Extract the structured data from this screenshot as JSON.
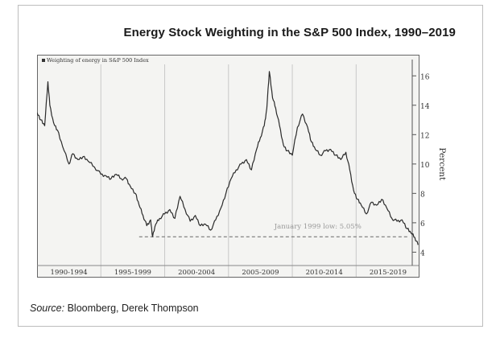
{
  "title": "Energy Stock Weighting in the S&P 500 Index, 1990–2019",
  "source_label": "Source:",
  "source_text": "Bloomberg, Derek Thompson",
  "chart_data": {
    "type": "line",
    "legend": "Weighting of energy in S&P 500 Index",
    "legend_position": "top-left",
    "ylabel": "Percent",
    "ylim": [
      3.2,
      17
    ],
    "yticks": [
      4,
      6,
      8,
      10,
      12,
      14,
      16
    ],
    "xlim": [
      1990.0,
      2019.9
    ],
    "x_categories": [
      "1990-1994",
      "1995-1999",
      "2000-2004",
      "2005-2009",
      "2010-2014",
      "2015-2019"
    ],
    "grid": true,
    "annotation": {
      "text": "January 1999 low: 5.05%",
      "value": 5.05
    },
    "series": [
      {
        "x": [
          1990.0,
          1990.3,
          1990.6,
          1990.85,
          1991.0,
          1991.3,
          1991.6,
          1992.0,
          1992.5,
          1992.8,
          1993.2,
          1993.6,
          1994.0,
          1994.5,
          1995.0,
          1995.4,
          1995.8,
          1996.2,
          1996.6,
          1997.0,
          1997.3,
          1997.7,
          1998.0,
          1998.3,
          1998.6,
          1998.9,
          1999.05,
          1999.3,
          1999.6,
          2000.0,
          2000.4,
          2000.8,
          2001.2,
          2001.6,
          2002.0,
          2002.4,
          2002.8,
          2003.2,
          2003.6,
          2004.0,
          2004.4,
          2004.8,
          2005.2,
          2005.6,
          2006.0,
          2006.4,
          2006.8,
          2007.2,
          2007.5,
          2007.8,
          2008.0,
          2008.2,
          2008.45,
          2008.7,
          2009.0,
          2009.3,
          2009.6,
          2010.0,
          2010.4,
          2010.8,
          2011.2,
          2011.5,
          2011.8,
          2012.2,
          2012.6,
          2013.0,
          2013.4,
          2013.8,
          2014.2,
          2014.5,
          2014.8,
          2015.1,
          2015.4,
          2015.8,
          2016.2,
          2016.6,
          2017.0,
          2017.4,
          2017.8,
          2018.2,
          2018.6,
          2019.0,
          2019.3,
          2019.6,
          2019.85
        ],
        "y": [
          13.5,
          13.0,
          12.6,
          15.6,
          14.0,
          12.8,
          12.3,
          11.2,
          10.0,
          10.7,
          10.3,
          10.5,
          10.2,
          9.8,
          9.3,
          9.2,
          9.0,
          9.3,
          9.0,
          9.0,
          8.5,
          8.0,
          7.2,
          6.5,
          5.8,
          6.2,
          5.05,
          5.9,
          6.3,
          6.6,
          6.9,
          6.3,
          7.8,
          6.9,
          6.1,
          6.5,
          5.8,
          5.9,
          5.5,
          6.2,
          7.0,
          8.0,
          9.0,
          9.6,
          10.0,
          10.3,
          9.6,
          11.0,
          11.8,
          12.6,
          13.8,
          16.3,
          14.5,
          13.8,
          12.6,
          11.3,
          10.9,
          10.6,
          12.5,
          13.4,
          12.5,
          11.5,
          11.0,
          10.6,
          10.9,
          11.0,
          10.6,
          10.3,
          10.8,
          9.6,
          8.2,
          7.6,
          7.2,
          6.6,
          7.4,
          7.2,
          7.6,
          7.0,
          6.3,
          6.1,
          6.2,
          5.6,
          5.3,
          5.0,
          4.5
        ]
      }
    ]
  }
}
